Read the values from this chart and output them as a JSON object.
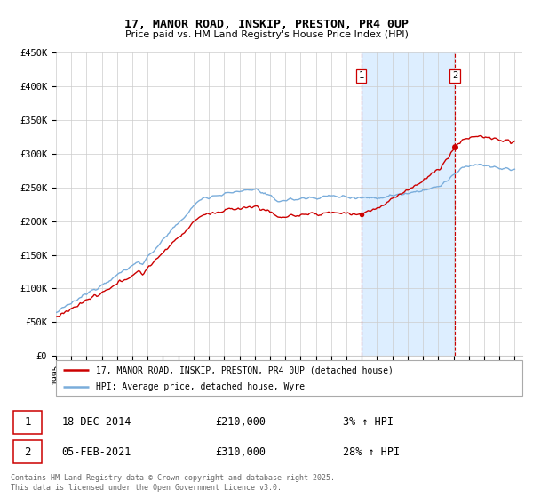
{
  "title": "17, MANOR ROAD, INSKIP, PRESTON, PR4 0UP",
  "subtitle": "Price paid vs. HM Land Registry's House Price Index (HPI)",
  "ylim": [
    0,
    450000
  ],
  "sale1_date": "18-DEC-2014",
  "sale1_price": 210000,
  "sale1_pct": "3%",
  "sale2_date": "05-FEB-2021",
  "sale2_price": 310000,
  "sale2_pct": "28%",
  "legend_line1": "17, MANOR ROAD, INSKIP, PRESTON, PR4 0UP (detached house)",
  "legend_line2": "HPI: Average price, detached house, Wyre",
  "footer": "Contains HM Land Registry data © Crown copyright and database right 2025.\nThis data is licensed under the Open Government Licence v3.0.",
  "sale1_year": 2014.96,
  "sale2_year": 2021.09,
  "hpi_color": "#7aaddb",
  "sale_color": "#cc0000",
  "sale_vline_color": "#cc0000",
  "shade_color": "#ddeeff",
  "background_color": "#ffffff",
  "grid_color": "#cccccc"
}
